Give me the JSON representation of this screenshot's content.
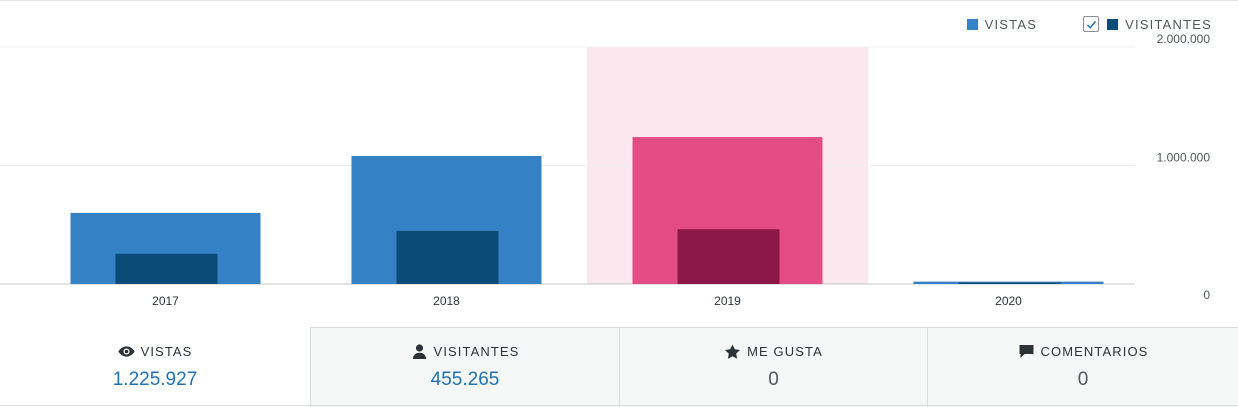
{
  "legend": {
    "views_label": "VISTAS",
    "visitors_label": "VISITANTES",
    "visitors_checked": true
  },
  "colors": {
    "views": "#3581c5",
    "visitors": "#0a4b78",
    "highlight_views": "#e34c84",
    "highlight_visitors": "#8c1749",
    "highlight_bg": "#fbe8ef",
    "gridline": "#f0f0f1",
    "axis": "#c3c4c7"
  },
  "chart_data": {
    "type": "bar",
    "categories": [
      "2017",
      "2018",
      "2019",
      "2020"
    ],
    "series": [
      {
        "name": "VISTAS",
        "values": [
          600000,
          1080000,
          1240000,
          20000
        ]
      },
      {
        "name": "VISITANTES",
        "values": [
          255000,
          448000,
          462000,
          12000
        ]
      }
    ],
    "highlighted_category": "2019",
    "ylim": [
      0,
      2000000
    ],
    "yticks": [
      0,
      1000000,
      2000000
    ],
    "ytick_labels": [
      "0",
      "1.000.000",
      "2.000.000"
    ],
    "grid": true,
    "legend_position": "top-right"
  },
  "tabs": [
    {
      "label": "VISTAS",
      "value": "1.225.927",
      "icon": "eye-icon",
      "active": true
    },
    {
      "label": "VISITANTES",
      "value": "455.265",
      "icon": "person-icon",
      "active": false
    },
    {
      "label": "ME GUSTA",
      "value": "0",
      "icon": "star-icon",
      "active": false
    },
    {
      "label": "COMENTARIOS",
      "value": "0",
      "icon": "comment-icon",
      "active": false
    }
  ]
}
